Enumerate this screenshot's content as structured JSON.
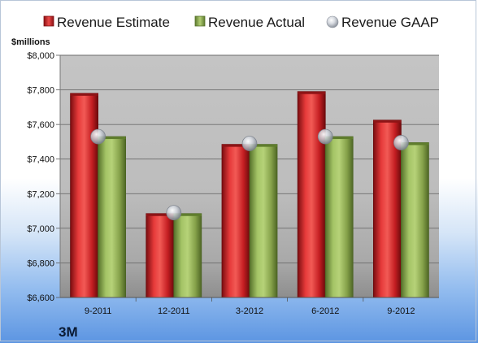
{
  "chart_data": {
    "type": "bar",
    "ylabel": "$millions",
    "company": "3M",
    "categories": [
      "9-2011",
      "12-2011",
      "3-2012",
      "6-2012",
      "9-2012"
    ],
    "series": [
      {
        "name": "Revenue Estimate",
        "kind": "bar",
        "values": [
          7780,
          7085,
          7485,
          7790,
          7625
        ]
      },
      {
        "name": "Revenue Actual",
        "kind": "bar",
        "values": [
          7530,
          7085,
          7485,
          7530,
          7495
        ]
      },
      {
        "name": "Revenue GAAP",
        "kind": "marker",
        "values": [
          7530,
          7090,
          7490,
          7530,
          7495
        ]
      }
    ],
    "ylim": [
      6600,
      8000
    ],
    "yticks": [
      6600,
      6800,
      7000,
      7200,
      7400,
      7600,
      7800,
      8000
    ],
    "ytick_labels": [
      "$6,600",
      "$6,800",
      "$7,000",
      "$7,200",
      "$7,400",
      "$7,600",
      "$7,800",
      "$8,000"
    ],
    "grid": true,
    "legend_position": "top",
    "colors": {
      "estimate": "#cc1f24",
      "actual": "#8fae52",
      "gaap": "#b9bfc9"
    }
  }
}
